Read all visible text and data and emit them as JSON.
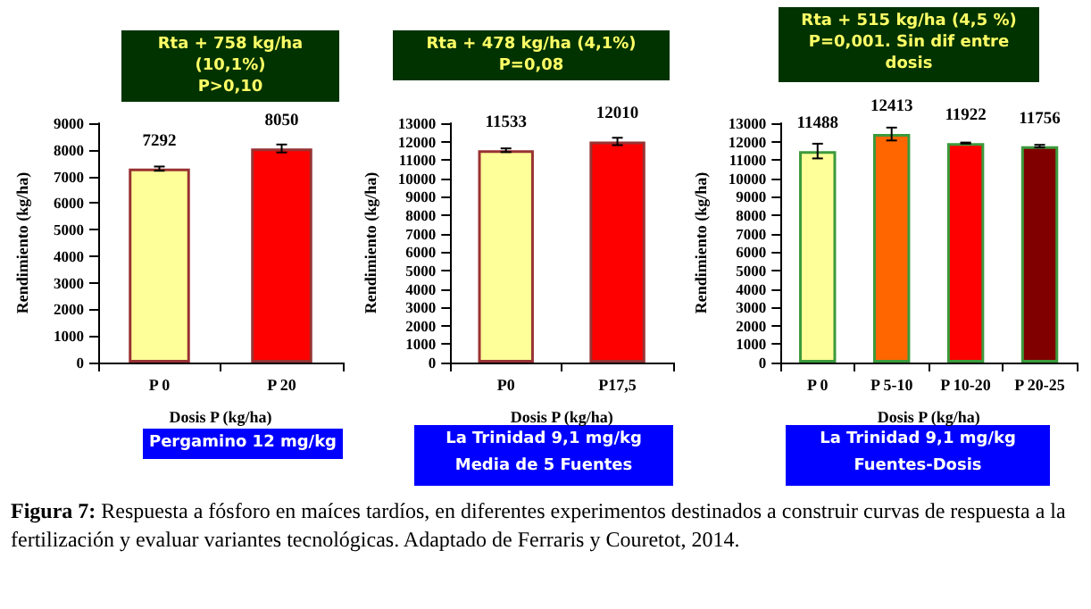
{
  "chart_data": [
    {
      "type": "bar",
      "categories": [
        "P 0",
        "P 20"
      ],
      "values": [
        7292,
        8050
      ],
      "errors": [
        80,
        150
      ],
      "colors": [
        "#ffff99",
        "#ff0000"
      ],
      "ylim": [
        0,
        9000
      ],
      "yticks": [
        0,
        1000,
        2000,
        3000,
        4000,
        5000,
        6000,
        7000,
        8000,
        9000
      ],
      "xlabel": "Dosis P (kg/ha)",
      "ylabel": "Rendimiento (kg/ha)",
      "data_labels": true,
      "annotations": [
        "Rta + 758 kg/ha  (10,1%)\nP>0,10",
        "Pergamino 12 mg/kg"
      ]
    },
    {
      "type": "bar",
      "categories": [
        "P0",
        "P17,5"
      ],
      "values": [
        11533,
        12010
      ],
      "errors": [
        100,
        200
      ],
      "colors": [
        "#ffff99",
        "#ff0000"
      ],
      "ylim": [
        0,
        13000
      ],
      "yticks": [
        0,
        1000,
        2000,
        3000,
        4000,
        5000,
        6000,
        7000,
        8000,
        9000,
        10000,
        11000,
        12000,
        13000
      ],
      "xlabel": "Dosis P (kg/ha)",
      "ylabel": "Rendimiento (kg/ha)",
      "data_labels": true,
      "annotations": [
        "Rta + 478 kg/ha (4,1%)\nP=0,08",
        "La Trinidad 9,1 mg/kg\nMedia de 5 Fuentes"
      ]
    },
    {
      "type": "bar",
      "categories": [
        "P 0",
        "P 5-10",
        "P 10-20",
        "P 20-25"
      ],
      "values": [
        11488,
        12413,
        11922,
        11756
      ],
      "errors": [
        400,
        350,
        30,
        70
      ],
      "colors": [
        "#ffff99",
        "#ff6600",
        "#ff0000",
        "#800000"
      ],
      "ylim": [
        0,
        13000
      ],
      "yticks": [
        0,
        1000,
        2000,
        3000,
        4000,
        5000,
        6000,
        7000,
        8000,
        9000,
        10000,
        11000,
        12000,
        13000
      ],
      "xlabel": "Dosis P (kg/ha)",
      "ylabel": "Rendimiento (kg/ha)",
      "data_labels": true,
      "annotations": [
        "Rta + 515 kg/ha (4,5 %)\nP=0,001. Sin dif entre dosis",
        "La Trinidad 9,1 mg/kg\nFuentes-Dosis",
        "Figura 7: Respuesta a fósforo en maíces tardíos, en diferentes experimentos destinados a construir curvas de respuesta a la fertilización y evaluar variantes tecnológicas. Adaptado de Ferraris y Couretot, 2014."
      ]
    }
  ]
}
